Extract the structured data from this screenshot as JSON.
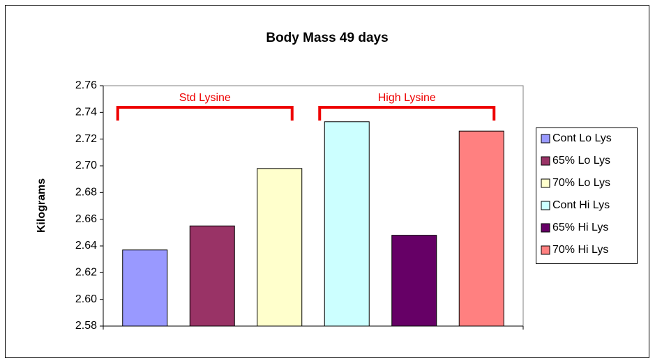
{
  "chart_data": {
    "type": "bar",
    "title": "Body Mass 49 days",
    "y_label": "Kilograms",
    "series": [
      {
        "name": "Cont Lo Lys",
        "color": "#9999ff",
        "values": [
          2.637
        ]
      },
      {
        "name": "65% Lo Lys",
        "color": "#993366",
        "values": [
          2.655
        ]
      },
      {
        "name": "70% Lo Lys",
        "color": "#ffffcc",
        "values": [
          2.698
        ]
      },
      {
        "name": "Cont Hi Lys",
        "color": "#ccffff",
        "values": [
          2.733
        ]
      },
      {
        "name": "65% Hi Lys",
        "color": "#660066",
        "values": [
          2.648
        ]
      },
      {
        "name": "70% Hi Lys",
        "color": "#ff8080",
        "values": [
          2.726
        ]
      }
    ],
    "annotations": [
      "Std Lysine",
      "High Lysine"
    ],
    "annotation_color": "#ee0000",
    "ylim": [
      2.58,
      2.76
    ],
    "yticks": [
      2.58,
      {
        "value": 2.6,
        "label": "2.60"
      },
      2.62,
      2.64,
      2.66,
      2.68,
      {
        "value": 2.7,
        "label": "2.70"
      },
      2.72,
      2.74,
      2.76
    ],
    "grid": false,
    "legend": "right"
  }
}
